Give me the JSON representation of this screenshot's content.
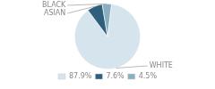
{
  "chart_data": {
    "type": "pie",
    "categories": [
      "WHITE",
      "ASIAN",
      "BLACK"
    ],
    "values": [
      87.9,
      7.6,
      4.5
    ],
    "value_labels": [
      "87.9%",
      "7.6%",
      "4.5%"
    ],
    "colors": [
      "#d6e4ed",
      "#2e5f7d",
      "#8aafc2"
    ],
    "legend": "bottom"
  }
}
